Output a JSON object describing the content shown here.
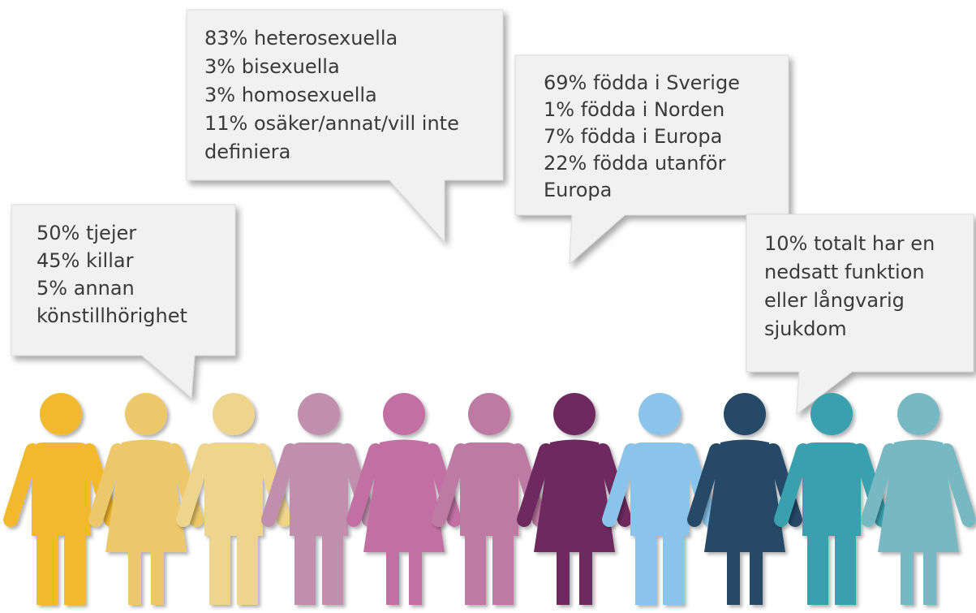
{
  "bubbles": [
    {
      "lines": [
        "50% tjejer",
        "45% killar",
        "5% annan",
        "könstillhörighet"
      ]
    },
    {
      "lines": [
        "83% heterosexuella",
        "3% bisexuella",
        "3% homosexuella",
        "11% osäker/annat/vill inte",
        "definiera"
      ]
    },
    {
      "lines": [
        "69% födda i Sverige",
        "1% födda i Norden",
        "7% födda i Europa",
        "22% födda utanför",
        "Europa"
      ]
    },
    {
      "lines": [
        "10% totalt har en",
        "nedsatt funktion",
        "eller långvarig",
        "sjukdom"
      ]
    }
  ]
}
